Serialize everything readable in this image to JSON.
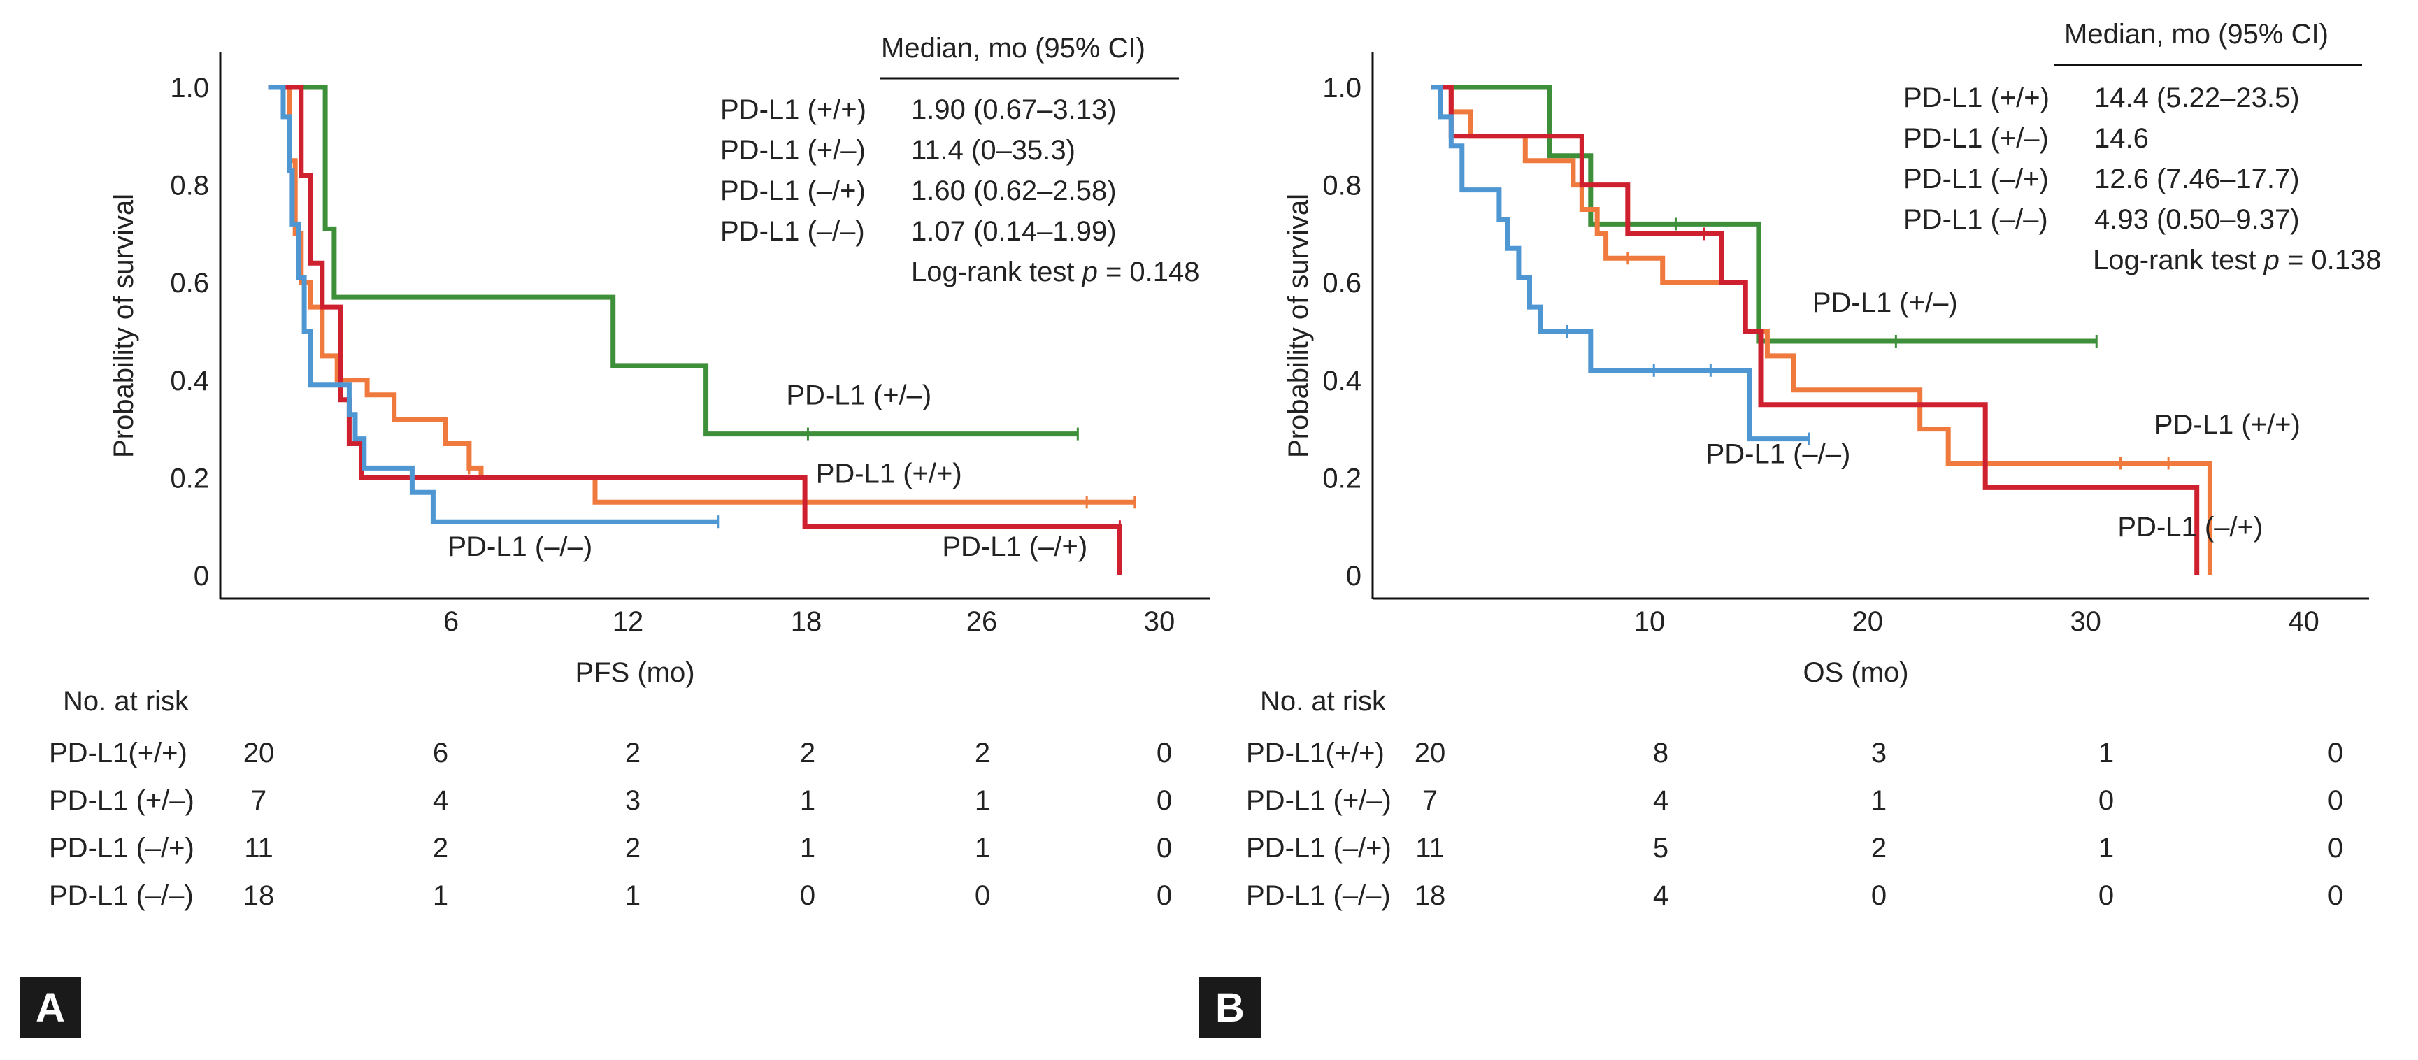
{
  "colors": {
    "pp": "#f07a3e",
    "pm": "#3e8f3a",
    "mp": "#cf2030",
    "mm": "#4f97d3",
    "badge_bg": "#1a1a1a"
  },
  "chart_data": [
    {
      "panel": "A",
      "type": "line",
      "title": "",
      "xlabel": "PFS (mo)",
      "ylabel": "Probability of survival",
      "xlim": [
        0,
        33
      ],
      "ylim": [
        0,
        1.05
      ],
      "x_ticks": [
        6,
        12,
        18,
        26,
        30
      ],
      "x_tick_labels": [
        "6",
        "12",
        "18",
        "26",
        "30"
      ],
      "y_ticks": [
        0,
        0.2,
        0.4,
        0.6,
        0.8,
        1.0
      ],
      "y_tick_labels": [
        "0",
        "0.2",
        "0.4",
        "0.6",
        "0.8",
        "1.0"
      ],
      "grid": false,
      "series": [
        {
          "name": "PD-L1 (+/–)",
          "color_key": "pm",
          "steps": [
            [
              1.6,
              1.0
            ],
            [
              3.5,
              1.0
            ],
            [
              3.5,
              0.71
            ],
            [
              3.8,
              0.71
            ],
            [
              3.8,
              0.57
            ],
            [
              13.1,
              0.57
            ],
            [
              13.1,
              0.43
            ],
            [
              16.2,
              0.43
            ],
            [
              16.2,
              0.29
            ],
            [
              28.6,
              0.29
            ]
          ],
          "censors": [
            [
              19.6,
              0.29
            ],
            [
              28.6,
              0.29
            ]
          ]
        },
        {
          "name": "PD-L1 (+/+)",
          "color_key": "pp",
          "steps": [
            [
              1.6,
              1.0
            ],
            [
              2.3,
              1.0
            ],
            [
              2.3,
              0.85
            ],
            [
              2.5,
              0.85
            ],
            [
              2.5,
              0.7
            ],
            [
              2.7,
              0.7
            ],
            [
              2.7,
              0.6
            ],
            [
              3.0,
              0.6
            ],
            [
              3.0,
              0.55
            ],
            [
              3.4,
              0.55
            ],
            [
              3.4,
              0.45
            ],
            [
              3.9,
              0.45
            ],
            [
              3.9,
              0.4
            ],
            [
              4.9,
              0.4
            ],
            [
              4.9,
              0.37
            ],
            [
              5.8,
              0.37
            ],
            [
              5.8,
              0.32
            ],
            [
              7.5,
              0.32
            ],
            [
              7.5,
              0.27
            ],
            [
              8.3,
              0.27
            ],
            [
              8.3,
              0.22
            ],
            [
              8.7,
              0.22
            ],
            [
              8.7,
              0.2
            ],
            [
              12.5,
              0.2
            ],
            [
              12.5,
              0.15
            ],
            [
              30.5,
              0.15
            ]
          ],
          "censors": [
            [
              8.3,
              0.22
            ],
            [
              28.9,
              0.15
            ],
            [
              30.5,
              0.15
            ]
          ]
        },
        {
          "name": "PD-L1 (–/+)",
          "color_key": "mp",
          "steps": [
            [
              1.6,
              1.0
            ],
            [
              2.7,
              1.0
            ],
            [
              2.7,
              0.82
            ],
            [
              3.0,
              0.82
            ],
            [
              3.0,
              0.64
            ],
            [
              3.4,
              0.64
            ],
            [
              3.4,
              0.55
            ],
            [
              4.0,
              0.55
            ],
            [
              4.0,
              0.36
            ],
            [
              4.3,
              0.36
            ],
            [
              4.3,
              0.27
            ],
            [
              4.7,
              0.27
            ],
            [
              4.7,
              0.2
            ],
            [
              19.5,
              0.2
            ],
            [
              19.5,
              0.1
            ],
            [
              30.0,
              0.1
            ],
            [
              30.0,
              0.0
            ]
          ],
          "censors": [
            [
              30.0,
              0.1
            ]
          ]
        },
        {
          "name": "PD-L1 (–/–)",
          "color_key": "mm",
          "steps": [
            [
              1.6,
              1.0
            ],
            [
              2.1,
              1.0
            ],
            [
              2.1,
              0.94
            ],
            [
              2.3,
              0.94
            ],
            [
              2.3,
              0.83
            ],
            [
              2.4,
              0.83
            ],
            [
              2.4,
              0.72
            ],
            [
              2.6,
              0.72
            ],
            [
              2.6,
              0.61
            ],
            [
              2.8,
              0.61
            ],
            [
              2.8,
              0.5
            ],
            [
              3.0,
              0.5
            ],
            [
              3.0,
              0.39
            ],
            [
              4.3,
              0.39
            ],
            [
              4.3,
              0.33
            ],
            [
              4.5,
              0.33
            ],
            [
              4.5,
              0.28
            ],
            [
              4.8,
              0.28
            ],
            [
              4.8,
              0.22
            ],
            [
              6.4,
              0.22
            ],
            [
              6.4,
              0.17
            ],
            [
              7.1,
              0.17
            ],
            [
              7.1,
              0.11
            ],
            [
              16.6,
              0.11
            ]
          ],
          "censors": [
            [
              16.6,
              0.11
            ]
          ]
        }
      ],
      "curve_labels": [
        {
          "text": "PD-L1 (+/–)",
          "x": 21.3,
          "y": 0.35
        },
        {
          "text": "PD-L1 (+/+)",
          "x": 22.3,
          "y": 0.19
        },
        {
          "text": "PD-L1 (–/–)",
          "x": 10.0,
          "y": 0.04
        },
        {
          "text": "PD-L1 (–/+)",
          "x": 26.5,
          "y": 0.04
        }
      ]
    },
    {
      "panel": "B",
      "type": "line",
      "title": "",
      "xlabel": "OS (mo)",
      "ylabel": "Probability of survival",
      "xlim": [
        -2.7,
        43
      ],
      "ylim": [
        0,
        1.05
      ],
      "x_ticks": [
        10,
        20,
        30,
        40
      ],
      "x_tick_labels": [
        "10",
        "20",
        "30",
        "40"
      ],
      "y_ticks": [
        0,
        0.2,
        0.4,
        0.6,
        0.8,
        1.0
      ],
      "y_tick_labels": [
        "0",
        "0.2",
        "0.4",
        "0.6",
        "0.8",
        "1.0"
      ],
      "grid": false,
      "series": [
        {
          "name": "PD-L1 (+/–)",
          "color_key": "pm",
          "steps": [
            [
              0,
              1.0
            ],
            [
              5.4,
              1.0
            ],
            [
              5.4,
              0.86
            ],
            [
              7.3,
              0.86
            ],
            [
              7.3,
              0.72
            ],
            [
              15.0,
              0.72
            ],
            [
              15.0,
              0.48
            ],
            [
              30.5,
              0.48
            ]
          ],
          "censors": [
            [
              11.2,
              0.72
            ],
            [
              21.3,
              0.48
            ],
            [
              30.5,
              0.48
            ]
          ]
        },
        {
          "name": "PD-L1 (+/+)",
          "color_key": "pp",
          "steps": [
            [
              0,
              1.0
            ],
            [
              0.9,
              1.0
            ],
            [
              0.9,
              0.95
            ],
            [
              1.8,
              0.95
            ],
            [
              1.8,
              0.9
            ],
            [
              4.3,
              0.9
            ],
            [
              4.3,
              0.85
            ],
            [
              6.5,
              0.85
            ],
            [
              6.5,
              0.8
            ],
            [
              6.9,
              0.8
            ],
            [
              6.9,
              0.75
            ],
            [
              7.6,
              0.75
            ],
            [
              7.6,
              0.7
            ],
            [
              8.0,
              0.7
            ],
            [
              8.0,
              0.65
            ],
            [
              10.6,
              0.65
            ],
            [
              10.6,
              0.6
            ],
            [
              14.4,
              0.6
            ],
            [
              14.4,
              0.5
            ],
            [
              15.4,
              0.5
            ],
            [
              15.4,
              0.45
            ],
            [
              16.6,
              0.45
            ],
            [
              16.6,
              0.38
            ],
            [
              22.4,
              0.38
            ],
            [
              22.4,
              0.3
            ],
            [
              23.7,
              0.3
            ],
            [
              23.7,
              0.23
            ],
            [
              35.7,
              0.23
            ],
            [
              35.7,
              0.0
            ]
          ],
          "censors": [
            [
              9.0,
              0.65
            ],
            [
              31.6,
              0.23
            ],
            [
              33.8,
              0.23
            ]
          ]
        },
        {
          "name": "PD-L1 (–/+)",
          "color_key": "mp",
          "steps": [
            [
              0,
              1.0
            ],
            [
              0.9,
              1.0
            ],
            [
              0.9,
              0.9
            ],
            [
              6.9,
              0.9
            ],
            [
              6.9,
              0.8
            ],
            [
              9.0,
              0.8
            ],
            [
              9.0,
              0.7
            ],
            [
              13.3,
              0.7
            ],
            [
              13.3,
              0.6
            ],
            [
              14.4,
              0.6
            ],
            [
              14.4,
              0.5
            ],
            [
              15.1,
              0.5
            ],
            [
              15.1,
              0.35
            ],
            [
              25.4,
              0.35
            ],
            [
              25.4,
              0.18
            ],
            [
              35.1,
              0.18
            ],
            [
              35.1,
              0.0
            ]
          ],
          "censors": [
            [
              12.5,
              0.7
            ]
          ]
        },
        {
          "name": "PD-L1 (–/–)",
          "color_key": "mm",
          "steps": [
            [
              0,
              1.0
            ],
            [
              0.4,
              1.0
            ],
            [
              0.4,
              0.94
            ],
            [
              0.9,
              0.94
            ],
            [
              0.9,
              0.88
            ],
            [
              1.4,
              0.88
            ],
            [
              1.4,
              0.79
            ],
            [
              3.1,
              0.79
            ],
            [
              3.1,
              0.73
            ],
            [
              3.5,
              0.73
            ],
            [
              3.5,
              0.67
            ],
            [
              4.0,
              0.67
            ],
            [
              4.0,
              0.61
            ],
            [
              4.5,
              0.61
            ],
            [
              4.5,
              0.55
            ],
            [
              5.0,
              0.55
            ],
            [
              5.0,
              0.5
            ],
            [
              7.3,
              0.5
            ],
            [
              7.3,
              0.42
            ],
            [
              14.6,
              0.42
            ],
            [
              14.6,
              0.28
            ],
            [
              17.3,
              0.28
            ]
          ],
          "censors": [
            [
              6.2,
              0.5
            ],
            [
              10.2,
              0.42
            ],
            [
              12.8,
              0.42
            ],
            [
              17.3,
              0.28
            ]
          ]
        }
      ],
      "curve_labels": [
        {
          "text": "PD-L1 (+/–)",
          "x": 20.8,
          "y": 0.54
        },
        {
          "text": "PD-L1 (–/–)",
          "x": 15.9,
          "y": 0.23
        },
        {
          "text": "PD-L1 (+/+)",
          "x": 36.5,
          "y": 0.29
        },
        {
          "text": "PD-L1 (–/+)",
          "x": 34.8,
          "y": 0.08
        }
      ]
    }
  ],
  "panel_a": {
    "badge": "A",
    "median_header": "Median, mo (95% CI)",
    "median_rows": [
      {
        "label": "PD-L1 (+/+)",
        "value": "1.90 (0.67–3.13)"
      },
      {
        "label": "PD-L1 (+/–)",
        "value": "11.4 (0–35.3)"
      },
      {
        "label": "PD-L1 (–/+)",
        "value": "1.60 (0.62–2.58)"
      },
      {
        "label": "PD-L1 (–/–)",
        "value": "1.07 (0.14–1.99)"
      }
    ],
    "logrank_prefix": "Log-rank test ",
    "logrank_p": "p",
    "logrank_value": " = 0.148",
    "risk_title": "No. at risk",
    "risk_rows": [
      {
        "label": "PD-L1(+/+)",
        "values": [
          "20",
          "6",
          "2",
          "2",
          "2",
          "0"
        ]
      },
      {
        "label": "PD-L1 (+/–)",
        "values": [
          "7",
          "4",
          "3",
          "1",
          "1",
          "0"
        ]
      },
      {
        "label": "PD-L1 (–/+)",
        "values": [
          "11",
          "2",
          "2",
          "1",
          "1",
          "0"
        ]
      },
      {
        "label": "PD-L1 (–/–)",
        "values": [
          "18",
          "1",
          "1",
          "0",
          "0",
          "0"
        ]
      }
    ]
  },
  "panel_b": {
    "badge": "B",
    "median_header": "Median, mo (95% CI)",
    "median_rows": [
      {
        "label": "PD-L1 (+/+)",
        "value": "14.4 (5.22–23.5)"
      },
      {
        "label": "PD-L1 (+/–)",
        "value": "14.6"
      },
      {
        "label": "PD-L1 (–/+)",
        "value": "12.6 (7.46–17.7)"
      },
      {
        "label": "PD-L1 (–/–)",
        "value": "4.93 (0.50–9.37)"
      }
    ],
    "logrank_prefix": "Log-rank test ",
    "logrank_p": "p",
    "logrank_value": " = 0.138",
    "risk_title": "No. at risk",
    "risk_rows": [
      {
        "label": "PD-L1(+/+)",
        "values": [
          "20",
          "8",
          "3",
          "1",
          "0"
        ]
      },
      {
        "label": "PD-L1 (+/–)",
        "values": [
          "7",
          "4",
          "1",
          "0",
          "0"
        ]
      },
      {
        "label": "PD-L1 (–/+)",
        "values": [
          "11",
          "5",
          "2",
          "1",
          "0"
        ]
      },
      {
        "label": "PD-L1 (–/–)",
        "values": [
          "18",
          "4",
          "0",
          "0",
          "0"
        ]
      }
    ]
  }
}
